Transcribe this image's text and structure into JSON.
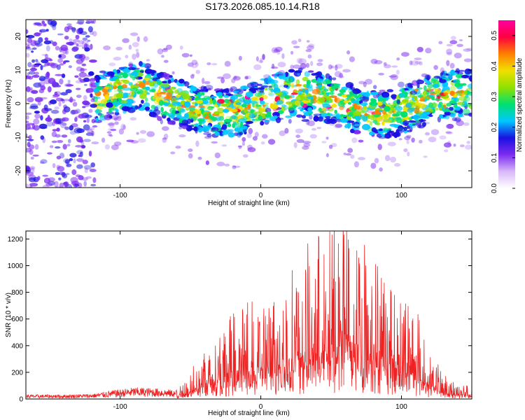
{
  "title": "S173.2026.085.10.14.R18",
  "colors": {
    "spectrogram_blob": "#7d2df0",
    "snr_line": "#ee2222",
    "frame": "#000000"
  },
  "chart_data": [
    {
      "type": "heatmap",
      "xlabel": "Height of straight line (km)",
      "ylabel": "Frequency (Hz)",
      "xlim": [
        -167,
        150
      ],
      "ylim": [
        -25,
        25
      ],
      "x_ticks": [
        -100,
        0,
        100
      ],
      "y_ticks": [
        -20,
        -10,
        0,
        10,
        20
      ],
      "x_tick_labels": [
        "-100",
        "0",
        "100"
      ],
      "y_tick_labels": [
        "-20",
        "-10",
        "0",
        "10",
        "20"
      ],
      "colorbar": {
        "label": "Normalized spectral amplitude",
        "range": [
          0,
          0.55
        ],
        "ticks": [
          0,
          0.1,
          0.2,
          0.3,
          0.4,
          0.5
        ],
        "tick_labels": [
          "0.0",
          "0.1",
          "0.2",
          "0.3",
          "0.4",
          "0.5"
        ],
        "colormap": [
          "#ffffff",
          "#d8b8f8",
          "#7d2df0",
          "#1a10e0",
          "#00c8ff",
          "#00e070",
          "#90e000",
          "#f0e000",
          "#ff8000",
          "#ff0040",
          "#ff00a0"
        ]
      },
      "band_center_hz": 0,
      "band_halfwidth_hz": 7,
      "grid": false
    },
    {
      "type": "line",
      "xlabel": "Height of straight line (km)",
      "ylabel": "SNR (10 * v/v)",
      "xlim": [
        -167,
        150
      ],
      "ylim": [
        0,
        1260
      ],
      "x_ticks": [
        -100,
        0,
        100
      ],
      "y_ticks": [
        0,
        200,
        400,
        600,
        800,
        1000,
        1200
      ],
      "x_tick_labels": [
        "-100",
        "0",
        "100"
      ],
      "y_tick_labels": [
        "0",
        "200",
        "400",
        "600",
        "800",
        "1000",
        "1200"
      ],
      "envelope": {
        "x": [
          -167,
          -140,
          -120,
          -105,
          -90,
          -75,
          -60,
          -50,
          -40,
          -30,
          -20,
          -10,
          0,
          10,
          20,
          30,
          40,
          50,
          60,
          70,
          80,
          90,
          100,
          110,
          120,
          130,
          140,
          150
        ],
        "y": [
          30,
          30,
          35,
          60,
          80,
          75,
          60,
          130,
          280,
          350,
          430,
          470,
          480,
          520,
          620,
          720,
          820,
          860,
          1000,
          820,
          760,
          640,
          560,
          460,
          240,
          120,
          80,
          60
        ]
      },
      "peak": {
        "x": 61,
        "y": 1260
      },
      "grid": false
    }
  ]
}
